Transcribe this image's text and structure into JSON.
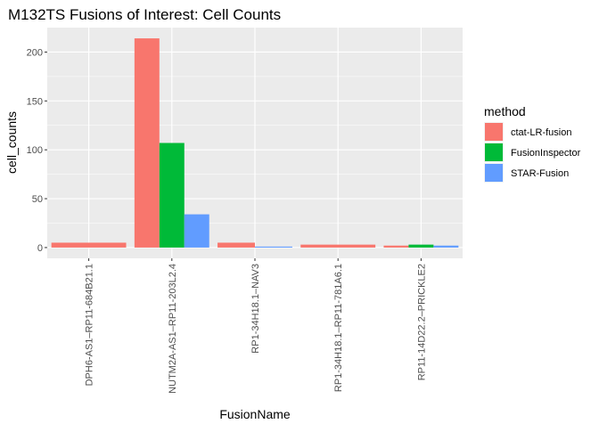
{
  "chart_data": {
    "type": "bar",
    "title": "M132TS Fusions of Interest: Cell Counts",
    "xlabel": "FusionName",
    "ylabel": "cell_counts",
    "categories": [
      "DPH6-AS1–RP11-684B21.1",
      "NUTM2A-AS1–RP11-203L2.4",
      "RP1-34H18.1–NAV3",
      "RP1-34H18.1–RP11-781A6.1",
      "RP11-14D22.2–PRICKLE2"
    ],
    "yticks": [
      0,
      50,
      100,
      150,
      200
    ],
    "ylim": [
      -11,
      225
    ],
    "grid": true,
    "legend": {
      "title": "method",
      "position": "right"
    },
    "bar_groups": [
      [
        {
          "series": "ctat-LR-fusion",
          "value": 5,
          "slots": 3
        }
      ],
      [
        {
          "series": "ctat-LR-fusion",
          "value": 214,
          "slots": 1
        },
        {
          "series": "FusionInspector",
          "value": 107,
          "slots": 1
        },
        {
          "series": "STAR-Fusion",
          "value": 34,
          "slots": 1
        }
      ],
      [
        {
          "series": "ctat-LR-fusion",
          "value": 5,
          "slots": 1.5
        },
        {
          "series": "STAR-Fusion",
          "value": 1,
          "slots": 1.5
        }
      ],
      [
        {
          "series": "ctat-LR-fusion",
          "value": 3,
          "slots": 3
        }
      ],
      [
        {
          "series": "ctat-LR-fusion",
          "value": 2,
          "slots": 1
        },
        {
          "series": "FusionInspector",
          "value": 3,
          "slots": 1
        },
        {
          "series": "STAR-Fusion",
          "value": 2,
          "slots": 1
        }
      ]
    ],
    "series": [
      {
        "name": "ctat-LR-fusion",
        "color": "#F8766D"
      },
      {
        "name": "FusionInspector",
        "color": "#00BA38"
      },
      {
        "name": "STAR-Fusion",
        "color": "#619CFF"
      }
    ]
  }
}
